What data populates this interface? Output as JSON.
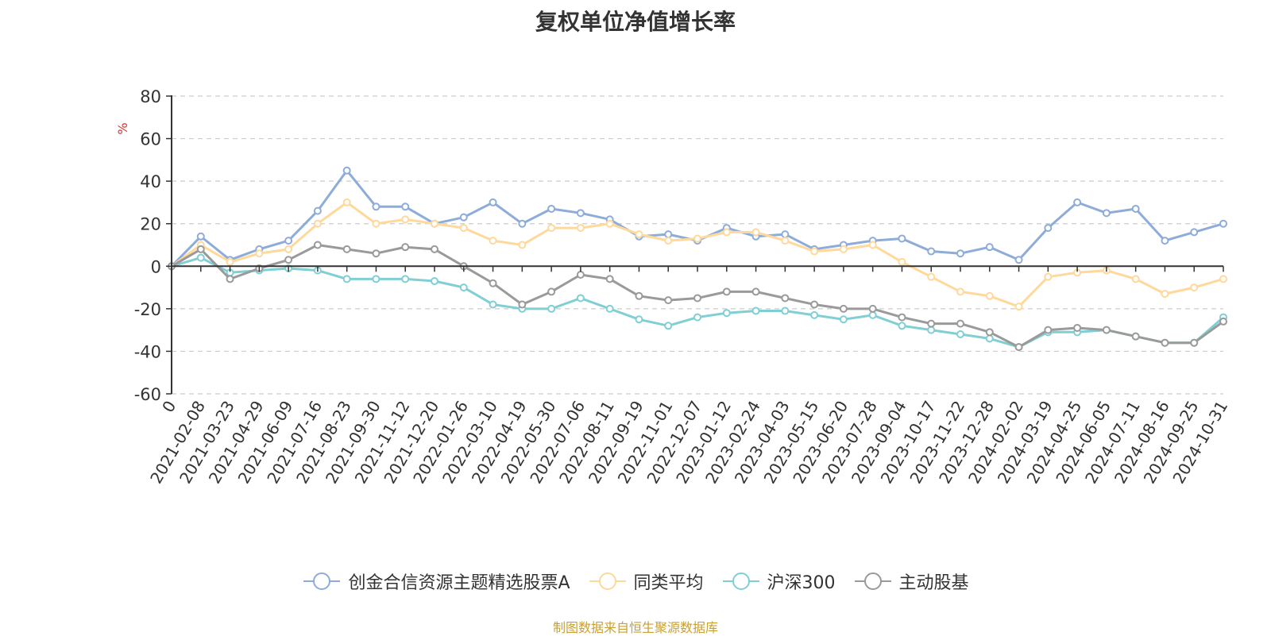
{
  "chart_data": {
    "type": "line",
    "title": "复权单位净值增长率",
    "ylabel": "%",
    "xlabel": "",
    "ylim": [
      -60,
      80
    ],
    "yticks": [
      80,
      60,
      40,
      20,
      0,
      -20,
      -40,
      -60
    ],
    "grid": true,
    "legend_position": "bottom",
    "categories": [
      "0",
      "2021-02-08",
      "2021-03-23",
      "2021-04-29",
      "2021-06-09",
      "2021-07-16",
      "2021-08-23",
      "2021-09-30",
      "2021-11-12",
      "2021-12-20",
      "2022-01-26",
      "2022-03-10",
      "2022-04-19",
      "2022-05-30",
      "2022-07-06",
      "2022-08-11",
      "2022-09-19",
      "2022-11-01",
      "2022-12-07",
      "2023-01-12",
      "2023-02-24",
      "2023-04-03",
      "2023-05-15",
      "2023-06-20",
      "2023-07-28",
      "2023-09-04",
      "2023-10-17",
      "2023-11-22",
      "2023-12-28",
      "2024-02-02",
      "2024-03-19",
      "2024-04-25",
      "2024-06-05",
      "2024-07-11",
      "2024-08-16",
      "2024-09-25",
      "2024-10-31"
    ],
    "series": [
      {
        "name": "创金合信资源主题精选股票A",
        "color": "#8eacd9",
        "values": [
          0,
          14,
          3,
          8,
          12,
          26,
          45,
          28,
          28,
          20,
          23,
          30,
          20,
          27,
          25,
          22,
          14,
          15,
          12,
          18,
          14,
          15,
          8,
          10,
          12,
          13,
          7,
          6,
          9,
          3,
          18,
          30,
          25,
          27,
          12,
          16,
          20
        ]
      },
      {
        "name": "同类平均",
        "color": "#ffd89b",
        "values": [
          0,
          10,
          2,
          6,
          8,
          20,
          30,
          20,
          22,
          20,
          18,
          12,
          10,
          18,
          18,
          20,
          15,
          12,
          13,
          16,
          16,
          12,
          7,
          8,
          10,
          2,
          -5,
          -12,
          -14,
          -19,
          -5,
          -3,
          -2,
          -6,
          -13,
          -10,
          -6
        ]
      },
      {
        "name": "沪深300",
        "color": "#7fcfd4",
        "values": [
          0,
          4,
          -3,
          -2,
          -1,
          -2,
          -6,
          -6,
          -6,
          -7,
          -10,
          -18,
          -20,
          -20,
          -15,
          -20,
          -25,
          -28,
          -24,
          -22,
          -21,
          -21,
          -23,
          -25,
          -23,
          -28,
          -30,
          -32,
          -34,
          -38,
          -31,
          -31,
          -30,
          -33,
          -36,
          -36,
          -24
        ]
      },
      {
        "name": "主动股基",
        "color": "#9a9a9a",
        "values": [
          0,
          8,
          -6,
          -1,
          3,
          10,
          8,
          6,
          9,
          8,
          0,
          -8,
          -18,
          -12,
          -4,
          -6,
          -14,
          -16,
          -15,
          -12,
          -12,
          -15,
          -18,
          -20,
          -20,
          -24,
          -27,
          -27,
          -31,
          -38,
          -30,
          -29,
          -30,
          -33,
          -36,
          -36,
          -26
        ]
      }
    ]
  },
  "legend": [
    {
      "label": "创金合信资源主题精选股票A",
      "color": "#8eacd9"
    },
    {
      "label": "同类平均",
      "color": "#ffd89b"
    },
    {
      "label": "沪深300",
      "color": "#7fcfd4"
    },
    {
      "label": "主动股基",
      "color": "#9a9a9a"
    }
  ],
  "footer": {
    "source_note": "制图数据来自恒生聚源数据库"
  }
}
